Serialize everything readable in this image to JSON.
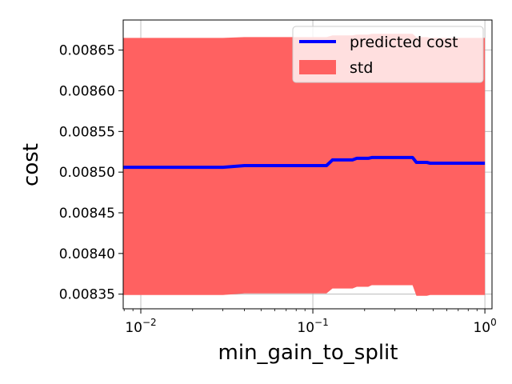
{
  "chart_data": {
    "type": "line",
    "title": "",
    "xlabel": "min_gain_to_split",
    "ylabel": "cost",
    "xscale": "log",
    "xlim": [
      0.0079,
      1.1
    ],
    "ylim": [
      0.008332,
      0.008687
    ],
    "grid": true,
    "legend_position": "top-right",
    "x_ticks": [
      {
        "value": 0.01,
        "base": "10",
        "exp": "−2"
      },
      {
        "value": 0.1,
        "base": "10",
        "exp": "−1"
      },
      {
        "value": 1,
        "base": "10",
        "exp": "0"
      }
    ],
    "y_ticks": [
      {
        "value": 0.00835,
        "label": "0.00835"
      },
      {
        "value": 0.0084,
        "label": "0.00840"
      },
      {
        "value": 0.00845,
        "label": "0.00845"
      },
      {
        "value": 0.0085,
        "label": "0.00850"
      },
      {
        "value": 0.00855,
        "label": "0.00855"
      },
      {
        "value": 0.0086,
        "label": "0.00860"
      },
      {
        "value": 0.00865,
        "label": "0.00865"
      }
    ],
    "series": [
      {
        "name": "predicted cost",
        "kind": "line",
        "color": "#0000ff",
        "x": [
          0.0079,
          0.03,
          0.04,
          0.12,
          0.13,
          0.17,
          0.18,
          0.21,
          0.22,
          0.38,
          0.4,
          0.46,
          0.48,
          1.0
        ],
        "y": [
          0.008506,
          0.008506,
          0.008508,
          0.008508,
          0.008515,
          0.008515,
          0.008517,
          0.008517,
          0.008518,
          0.008518,
          0.008512,
          0.008512,
          0.008511,
          0.008511
        ]
      },
      {
        "name": "std",
        "kind": "band",
        "color": "#ff6161",
        "x": [
          0.0079,
          0.03,
          0.04,
          0.12,
          0.13,
          0.17,
          0.18,
          0.21,
          0.22,
          0.38,
          0.4,
          0.46,
          0.48,
          1.0
        ],
        "upper": [
          0.008665,
          0.008665,
          0.008666,
          0.008666,
          0.008668,
          0.008668,
          0.008669,
          0.008669,
          0.00867,
          0.00867,
          0.008666,
          0.008666,
          0.008665,
          0.008665
        ],
        "lower": [
          0.008349,
          0.008349,
          0.008351,
          0.008351,
          0.008357,
          0.008357,
          0.008359,
          0.008359,
          0.008361,
          0.008361,
          0.008348,
          0.008348,
          0.008349,
          0.008349
        ]
      }
    ]
  }
}
